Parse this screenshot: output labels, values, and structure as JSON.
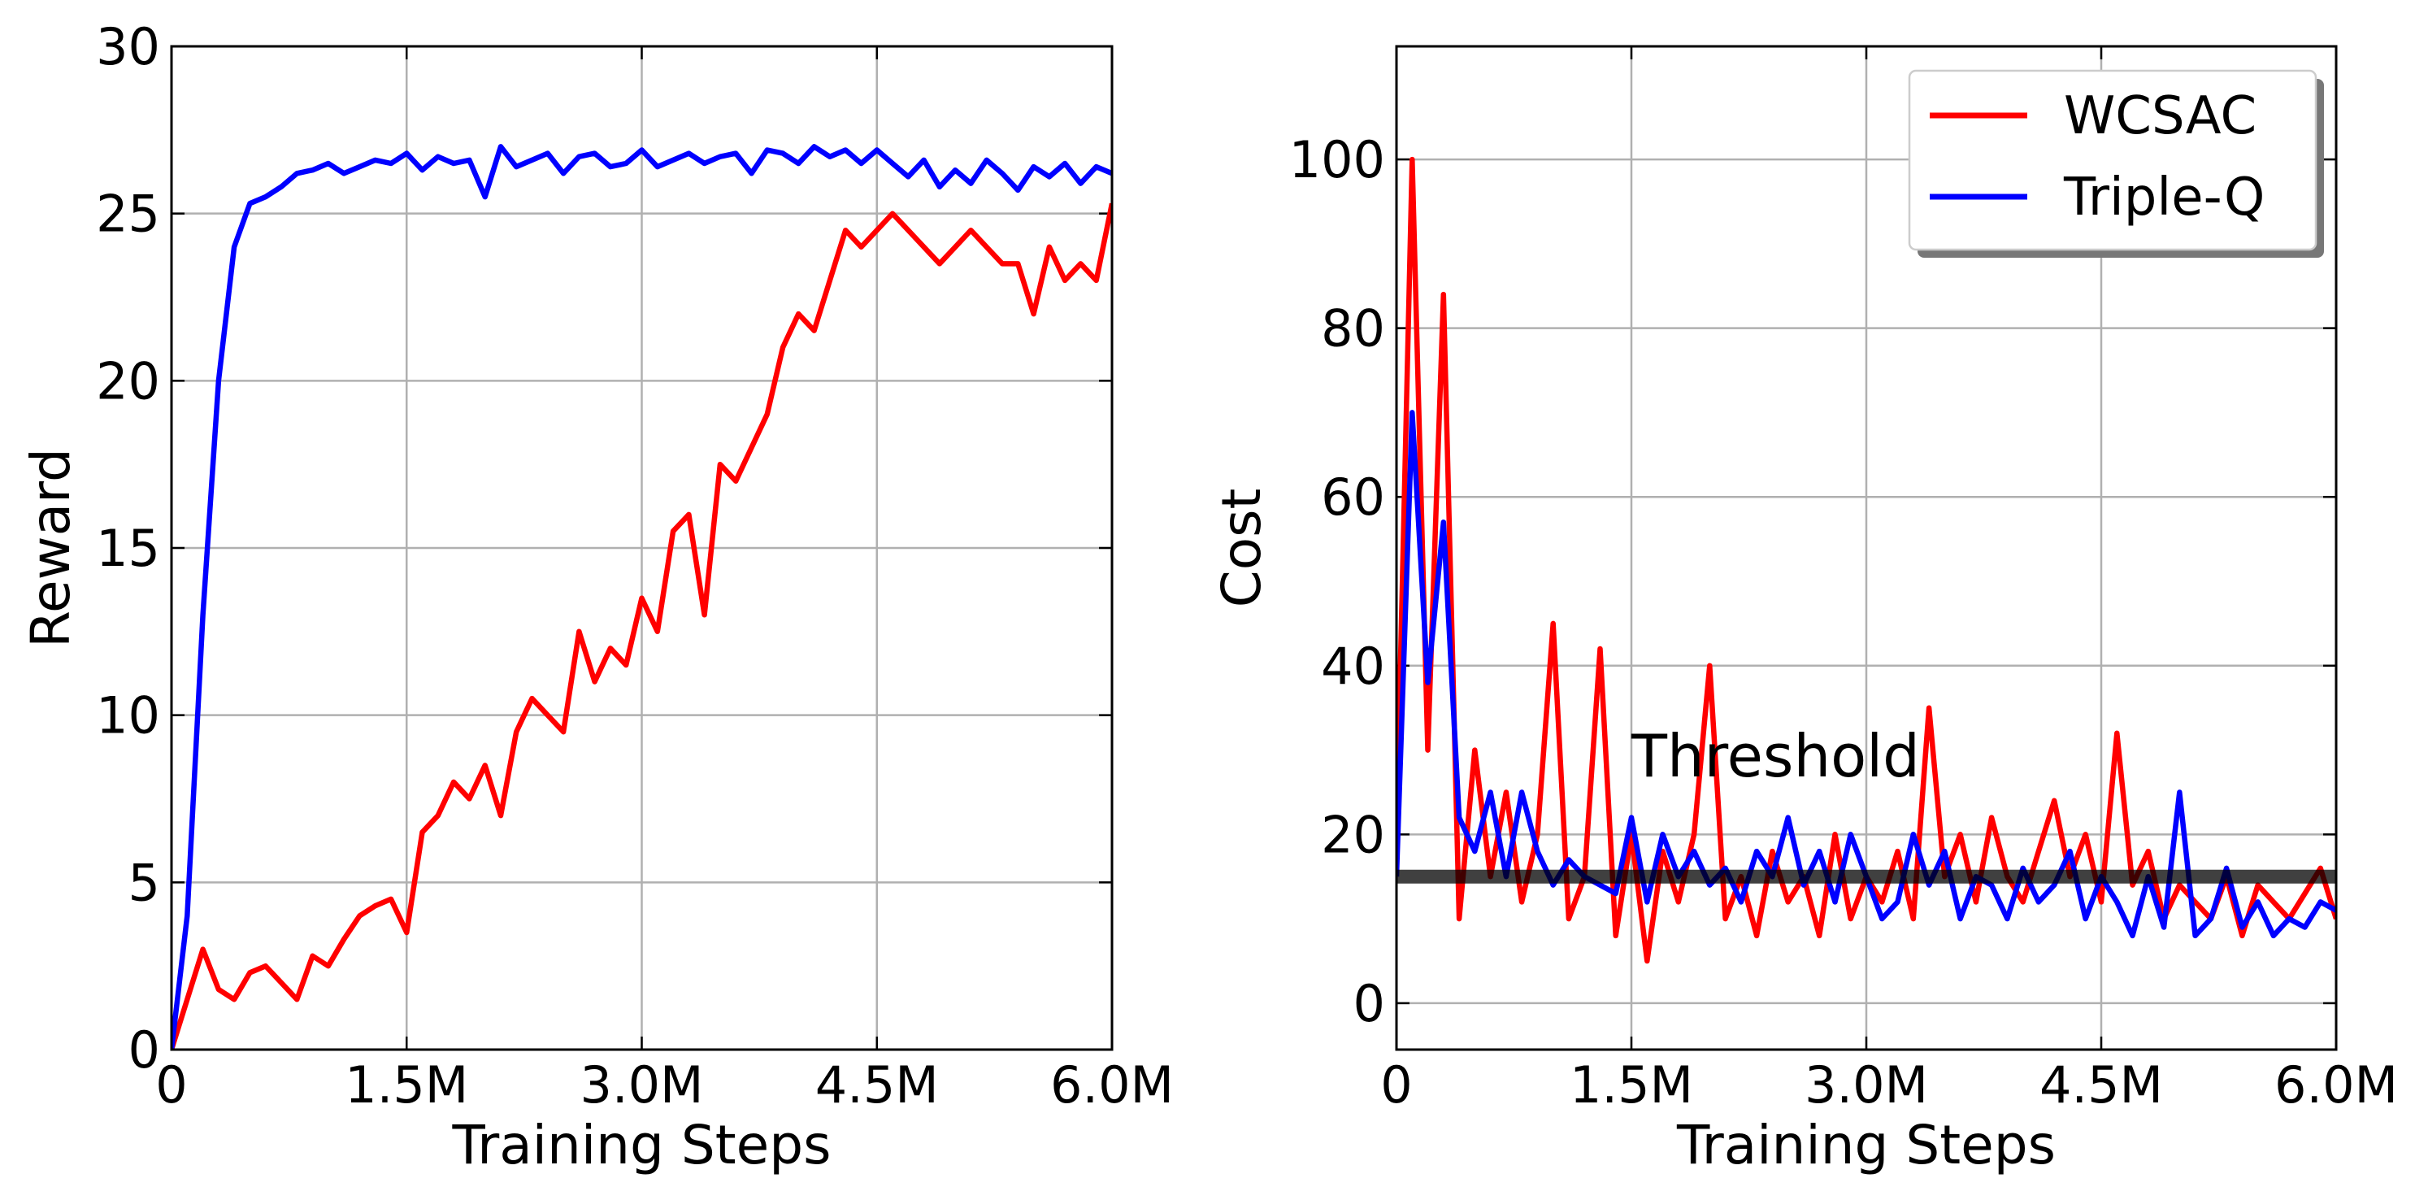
{
  "chart_data": [
    {
      "type": "line",
      "xlabel": "Training Steps",
      "ylabel": "Reward",
      "x": [
        0,
        100000,
        200000,
        300000,
        400000,
        500000,
        600000,
        700000,
        800000,
        900000,
        1000000,
        1100000,
        1200000,
        1300000,
        1400000,
        1500000,
        1600000,
        1700000,
        1800000,
        1900000,
        2000000,
        2100000,
        2200000,
        2300000,
        2400000,
        2500000,
        2600000,
        2700000,
        2800000,
        2900000,
        3000000,
        3100000,
        3200000,
        3300000,
        3400000,
        3500000,
        3600000,
        3700000,
        3800000,
        3900000,
        4000000,
        4100000,
        4200000,
        4300000,
        4400000,
        4500000,
        4600000,
        4700000,
        4800000,
        4900000,
        5000000,
        5100000,
        5200000,
        5300000,
        5400000,
        5500000,
        5600000,
        5700000,
        5800000,
        5900000,
        6000000
      ],
      "series": [
        {
          "name": "WCSAC",
          "color": "#ff0000",
          "values": [
            0,
            1.5,
            3,
            1.8,
            1.5,
            2.3,
            2.5,
            2,
            1.5,
            2.8,
            2.5,
            3.3,
            4,
            4.3,
            4.5,
            3.5,
            6.5,
            7,
            8,
            7.5,
            8.5,
            7,
            9.5,
            10.5,
            10,
            9.5,
            12.5,
            11,
            12,
            11.5,
            13.5,
            12.5,
            15.5,
            16,
            13,
            17.5,
            17,
            18,
            19,
            21,
            22,
            21.5,
            23,
            24.5,
            24,
            24.5,
            25,
            24.5,
            24,
            23.5,
            24,
            24.5,
            24,
            23.5,
            23.5,
            22,
            24,
            23,
            23.5,
            23,
            25.3
          ]
        },
        {
          "name": "Triple-Q",
          "color": "#0000ff",
          "values": [
            0,
            4,
            13,
            20,
            24,
            25.3,
            25.5,
            25.8,
            26.2,
            26.3,
            26.5,
            26.2,
            26.4,
            26.6,
            26.5,
            26.8,
            26.3,
            26.7,
            26.5,
            26.6,
            25.5,
            27,
            26.4,
            26.6,
            26.8,
            26.2,
            26.7,
            26.8,
            26.4,
            26.5,
            26.9,
            26.4,
            26.6,
            26.8,
            26.5,
            26.7,
            26.8,
            26.2,
            26.9,
            26.8,
            26.5,
            27,
            26.7,
            26.9,
            26.5,
            26.9,
            26.5,
            26.1,
            26.6,
            25.8,
            26.3,
            25.9,
            26.6,
            26.2,
            25.7,
            26.4,
            26.1,
            26.5,
            25.9,
            26.4,
            26.2
          ]
        }
      ],
      "xlim": [
        0,
        6000000
      ],
      "xticks": [
        0,
        {
          "value": 1500000,
          "label": "1.5M"
        },
        {
          "value": 3000000,
          "label": "3.0M"
        },
        {
          "value": 4500000,
          "label": "4.5M"
        },
        {
          "value": 6000000,
          "label": "6.0M"
        }
      ],
      "ylim": [
        0,
        30
      ],
      "yticks": [
        0,
        5,
        10,
        15,
        20,
        25,
        30
      ],
      "grid": true
    },
    {
      "type": "line",
      "xlabel": "Training Steps",
      "ylabel": "Cost",
      "x": [
        0,
        100000,
        200000,
        300000,
        400000,
        500000,
        600000,
        700000,
        800000,
        900000,
        1000000,
        1100000,
        1200000,
        1300000,
        1400000,
        1500000,
        1600000,
        1700000,
        1800000,
        1900000,
        2000000,
        2100000,
        2200000,
        2300000,
        2400000,
        2500000,
        2600000,
        2700000,
        2800000,
        2900000,
        3000000,
        3100000,
        3200000,
        3300000,
        3400000,
        3500000,
        3600000,
        3700000,
        3800000,
        3900000,
        4000000,
        4100000,
        4200000,
        4300000,
        4400000,
        4500000,
        4600000,
        4700000,
        4800000,
        4900000,
        5000000,
        5100000,
        5200000,
        5300000,
        5400000,
        5500000,
        5600000,
        5700000,
        5800000,
        5900000,
        6000000
      ],
      "series": [
        {
          "name": "WCSAC",
          "color": "#ff0000",
          "values": [
            20,
            100,
            30,
            84,
            10,
            30,
            15,
            25,
            12,
            20,
            45,
            10,
            15,
            42,
            8,
            20,
            5,
            18,
            12,
            20,
            40,
            10,
            15,
            8,
            18,
            12,
            15,
            8,
            20,
            10,
            15,
            12,
            18,
            10,
            35,
            15,
            20,
            12,
            22,
            15,
            12,
            18,
            24,
            15,
            20,
            12,
            32,
            14,
            18,
            10,
            14,
            12,
            10,
            15,
            8,
            14,
            12,
            10,
            13,
            16,
            10
          ]
        },
        {
          "name": "Triple-Q",
          "color": "#0000ff",
          "values": [
            15,
            70,
            38,
            57,
            22,
            18,
            25,
            15,
            25,
            18,
            14,
            17,
            15,
            14,
            13,
            22,
            12,
            20,
            15,
            18,
            14,
            16,
            12,
            18,
            15,
            22,
            14,
            18,
            12,
            20,
            15,
            10,
            12,
            20,
            14,
            18,
            10,
            15,
            14,
            10,
            16,
            12,
            14,
            18,
            10,
            15,
            12,
            8,
            15,
            9,
            25,
            8,
            10,
            16,
            9,
            12,
            8,
            10,
            9,
            12,
            11
          ]
        }
      ],
      "threshold": 15,
      "threshold_label": "Threshold",
      "xlim": [
        0,
        6000000
      ],
      "xticks": [
        0,
        {
          "value": 1500000,
          "label": "1.5M"
        },
        {
          "value": 3000000,
          "label": "3.0M"
        },
        {
          "value": 4500000,
          "label": "4.5M"
        },
        {
          "value": 6000000,
          "label": "6.0M"
        }
      ],
      "ylim": [
        -5.5,
        113.4
      ],
      "yticks": [
        0,
        20,
        40,
        60,
        80,
        100
      ],
      "grid": true,
      "legend": "upper right"
    }
  ]
}
